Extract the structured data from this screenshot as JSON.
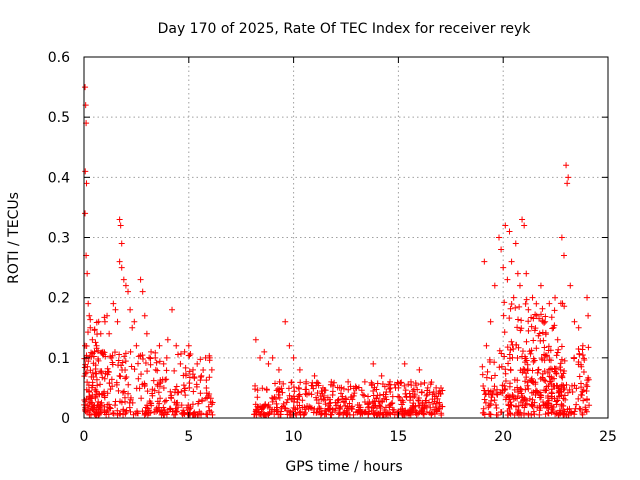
{
  "chart_data": {
    "type": "scatter",
    "title": "Day 170 of 2025, Rate Of TEC Index for receiver reyk",
    "xlabel": "GPS time / hours",
    "ylabel": "ROTI / TECUs",
    "xlim": [
      0,
      25
    ],
    "ylim": [
      0,
      0.6
    ],
    "xticks": [
      "0",
      "5",
      "10",
      "15",
      "20",
      "25"
    ],
    "yticks": [
      "0",
      "0.1",
      "0.2",
      "0.3",
      "0.4",
      "0.5",
      "0.6"
    ],
    "grid": true,
    "marker": "+",
    "color": "#ff0000",
    "series": [
      {
        "name": "",
        "points": [
          [
            0.05,
            0.55
          ],
          [
            0.08,
            0.52
          ],
          [
            0.1,
            0.49
          ],
          [
            0.06,
            0.41
          ],
          [
            0.12,
            0.39
          ],
          [
            0.05,
            0.34
          ],
          [
            0.1,
            0.27
          ],
          [
            0.15,
            0.24
          ],
          [
            0.2,
            0.19
          ],
          [
            0.25,
            0.17
          ],
          [
            0.3,
            0.15
          ],
          [
            0.05,
            0.12
          ],
          [
            0.4,
            0.13
          ],
          [
            0.5,
            0.11
          ],
          [
            0.6,
            0.12
          ],
          [
            0.7,
            0.16
          ],
          [
            0.8,
            0.14
          ],
          [
            0.9,
            0.11
          ],
          [
            1.0,
            0.16
          ],
          [
            1.1,
            0.17
          ],
          [
            1.2,
            0.14
          ],
          [
            1.3,
            0.1
          ],
          [
            1.4,
            0.19
          ],
          [
            1.5,
            0.18
          ],
          [
            1.6,
            0.16
          ],
          [
            1.7,
            0.33
          ],
          [
            1.75,
            0.32
          ],
          [
            1.8,
            0.29
          ],
          [
            1.7,
            0.26
          ],
          [
            1.8,
            0.25
          ],
          [
            1.9,
            0.23
          ],
          [
            2.0,
            0.22
          ],
          [
            2.1,
            0.21
          ],
          [
            2.2,
            0.18
          ],
          [
            2.3,
            0.15
          ],
          [
            2.4,
            0.16
          ],
          [
            2.5,
            0.12
          ],
          [
            2.7,
            0.23
          ],
          [
            2.8,
            0.21
          ],
          [
            2.9,
            0.17
          ],
          [
            3.0,
            0.14
          ],
          [
            3.2,
            0.11
          ],
          [
            3.4,
            0.1
          ],
          [
            3.6,
            0.12
          ],
          [
            3.8,
            0.09
          ],
          [
            4.0,
            0.13
          ],
          [
            4.2,
            0.18
          ],
          [
            4.4,
            0.12
          ],
          [
            4.6,
            0.09
          ],
          [
            4.8,
            0.11
          ],
          [
            5.0,
            0.12
          ],
          [
            5.2,
            0.08
          ],
          [
            5.4,
            0.09
          ],
          [
            5.6,
            0.07
          ],
          [
            5.8,
            0.1
          ],
          [
            6.0,
            0.1
          ],
          [
            6.1,
            0.08
          ],
          [
            8.2,
            0.13
          ],
          [
            8.4,
            0.1
          ],
          [
            8.6,
            0.11
          ],
          [
            8.8,
            0.09
          ],
          [
            9.0,
            0.1
          ],
          [
            9.3,
            0.08
          ],
          [
            9.6,
            0.16
          ],
          [
            9.8,
            0.12
          ],
          [
            10.0,
            0.1
          ],
          [
            10.3,
            0.08
          ],
          [
            10.6,
            0.06
          ],
          [
            11.0,
            0.07
          ],
          [
            11.4,
            0.05
          ],
          [
            11.8,
            0.06
          ],
          [
            12.2,
            0.05
          ],
          [
            12.6,
            0.06
          ],
          [
            13.0,
            0.05
          ],
          [
            13.4,
            0.06
          ],
          [
            13.8,
            0.09
          ],
          [
            14.2,
            0.07
          ],
          [
            14.6,
            0.06
          ],
          [
            15.0,
            0.05
          ],
          [
            15.3,
            0.09
          ],
          [
            15.6,
            0.06
          ],
          [
            16.0,
            0.08
          ],
          [
            16.4,
            0.05
          ],
          [
            16.8,
            0.05
          ],
          [
            17.0,
            0.04
          ],
          [
            19.1,
            0.26
          ],
          [
            19.2,
            0.12
          ],
          [
            19.4,
            0.16
          ],
          [
            19.6,
            0.22
          ],
          [
            19.8,
            0.3
          ],
          [
            19.9,
            0.28
          ],
          [
            20.0,
            0.25
          ],
          [
            20.1,
            0.32
          ],
          [
            20.2,
            0.23
          ],
          [
            20.3,
            0.31
          ],
          [
            20.4,
            0.26
          ],
          [
            20.5,
            0.2
          ],
          [
            20.6,
            0.29
          ],
          [
            20.7,
            0.24
          ],
          [
            20.8,
            0.22
          ],
          [
            20.9,
            0.33
          ],
          [
            21.0,
            0.32
          ],
          [
            21.1,
            0.24
          ],
          [
            21.2,
            0.18
          ],
          [
            21.4,
            0.2
          ],
          [
            21.6,
            0.17
          ],
          [
            21.8,
            0.22
          ],
          [
            22.0,
            0.16
          ],
          [
            22.2,
            0.19
          ],
          [
            22.4,
            0.15
          ],
          [
            22.6,
            0.13
          ],
          [
            22.8,
            0.3
          ],
          [
            22.9,
            0.27
          ],
          [
            23.0,
            0.42
          ],
          [
            23.05,
            0.39
          ],
          [
            23.1,
            0.4
          ],
          [
            23.2,
            0.22
          ],
          [
            23.4,
            0.16
          ],
          [
            23.6,
            0.15
          ],
          [
            23.8,
            0.12
          ],
          [
            24.0,
            0.2
          ],
          [
            24.05,
            0.17
          ]
        ],
        "dense_bands": [
          {
            "x": [
              0.0,
              6.15
            ],
            "y": [
              0.005,
              0.11
            ]
          },
          {
            "x": [
              0.0,
              1.2
            ],
            "y": [
              0.01,
              0.17
            ]
          },
          {
            "x": [
              8.1,
              17.1
            ],
            "y": [
              0.005,
              0.06
            ]
          },
          {
            "x": [
              19.0,
              24.1
            ],
            "y": [
              0.005,
              0.12
            ]
          },
          {
            "x": [
              20.0,
              23.0
            ],
            "y": [
              0.02,
              0.2
            ]
          }
        ]
      }
    ]
  }
}
